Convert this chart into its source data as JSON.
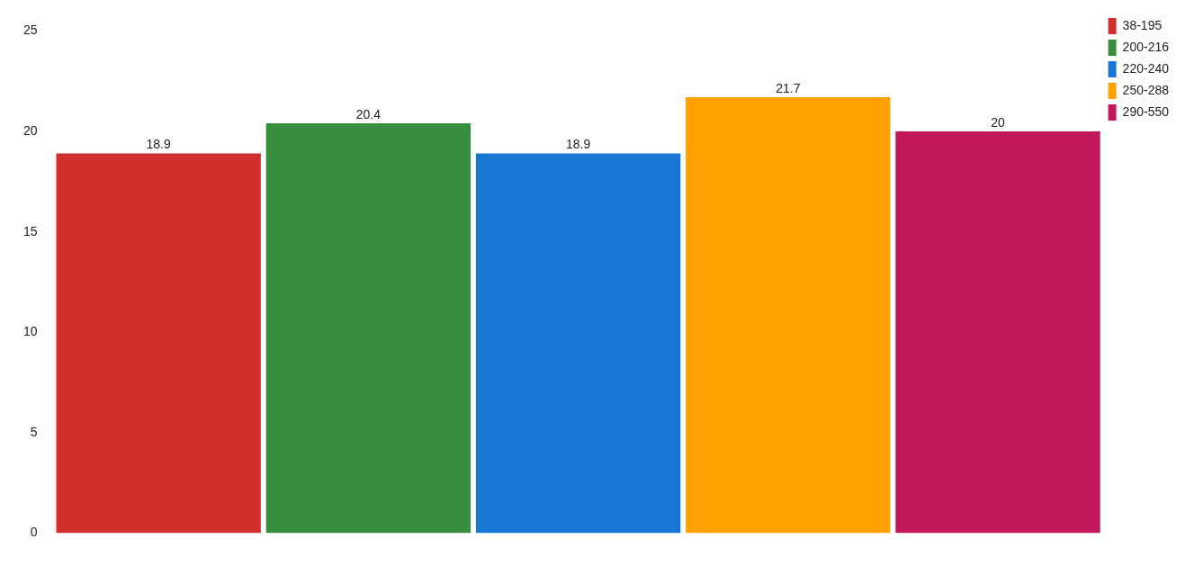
{
  "chart_data": {
    "type": "bar",
    "categories": [
      null
    ],
    "series": [
      {
        "name": "38-195",
        "color": "#d32f2f",
        "values": [
          18.9
        ]
      },
      {
        "name": "200-216",
        "color": "#388e3c",
        "values": [
          20.4
        ]
      },
      {
        "name": "220-240",
        "color": "#1976d2",
        "values": [
          18.9
        ]
      },
      {
        "name": "250-288",
        "color": "#ffa000",
        "values": [
          21.7
        ]
      },
      {
        "name": "290-550",
        "color": "#c2185b",
        "values": [
          20
        ]
      }
    ],
    "ylim": [
      0,
      25
    ],
    "yticks": [
      0,
      5,
      10,
      15,
      20,
      25
    ],
    "grid": false,
    "legend": "top right",
    "data_labels": true
  }
}
